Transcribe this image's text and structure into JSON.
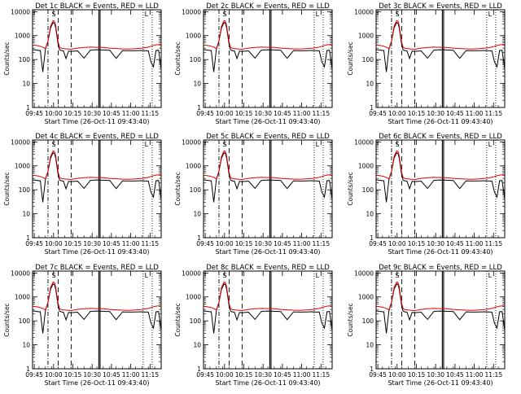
{
  "figure": {
    "layout": "3x3 grid of time-series panels",
    "line_colors": {
      "events": "#000000",
      "lld": "#e00000",
      "markers": "#000000"
    },
    "common": {
      "type": "line",
      "ylabel": "Counts/sec",
      "xlabel": "Start Time (26-Oct-11 09:43:40)",
      "yscale": "log",
      "ylim": [
        1,
        12000
      ],
      "yticks": [
        1,
        10,
        100,
        1000,
        10000
      ],
      "ytick_labels": [
        "1",
        "10",
        "100",
        "1000",
        "10000"
      ],
      "xlim_min": [
        0,
        100
      ],
      "flag_label_s": "S",
      "flag_label_l": "L",
      "marker_times_min": {
        "dashdot": 12,
        "dashed": [
          20,
          30
        ],
        "solid_double": [
          51.5,
          52.5
        ],
        "dotted": [
          86,
          93
        ]
      },
      "x": [
        0,
        2,
        4,
        5,
        6,
        8,
        10,
        12,
        14,
        16,
        17,
        18,
        19,
        20,
        21,
        22,
        24,
        26,
        28,
        30,
        35,
        40,
        45,
        50,
        55,
        60,
        65,
        70,
        75,
        80,
        85,
        90,
        92,
        94,
        96,
        98,
        100
      ],
      "series_lld": [
        410,
        395,
        380,
        370,
        360,
        330,
        290,
        600,
        2500,
        4200,
        4000,
        2600,
        1100,
        500,
        330,
        300,
        290,
        280,
        275,
        270,
        300,
        320,
        330,
        325,
        320,
        300,
        290,
        280,
        275,
        285,
        300,
        330,
        360,
        390,
        410,
        420,
        425
      ],
      "series_events": [
        260,
        255,
        245,
        240,
        240,
        30,
        270,
        600,
        2100,
        3500,
        3300,
        2100,
        900,
        380,
        255,
        240,
        230,
        110,
        225,
        220,
        230,
        115,
        250,
        258,
        252,
        245,
        112,
        238,
        232,
        236,
        240,
        230,
        80,
        50,
        240,
        245,
        40
      ]
    }
  },
  "chart_data": [
    {
      "title": "Det 1c BLACK = Events, RED = LLD",
      "type": "line",
      "xtick_labels": [
        "09:45",
        "10:00",
        "10:15",
        "10:30",
        "10:45",
        "11:00",
        "11:15"
      ],
      "xtick_min": [
        1.33,
        16.33,
        31.33,
        46.33,
        61.33,
        76.33,
        91.33
      ],
      "xlabel": "Start Time (26-Oct-11 09:43:40)",
      "ylabel": "Counts/sec"
    },
    {
      "title": "Det 2c BLACK = Events, RED = LLD",
      "type": "line",
      "xtick_labels": [
        "09:45",
        "10:00",
        "10:15",
        "10:30",
        "10:45",
        "11:00",
        "11:15"
      ],
      "xtick_min": [
        1.33,
        16.33,
        31.33,
        46.33,
        61.33,
        76.33,
        91.33
      ],
      "xlabel": "Start Time (26-Oct-11 09:43:40)",
      "ylabel": "Counts/sec"
    },
    {
      "title": "Det 3c BLACK = Events, RED = LLD",
      "type": "line",
      "xtick_labels": [
        "09:45",
        "10:00",
        "10:15",
        "10:30",
        "10:45",
        "11:00",
        "11:15"
      ],
      "xtick_min": [
        1.33,
        16.33,
        31.33,
        46.33,
        61.33,
        76.33,
        91.33
      ],
      "xlabel": "Start Time (26-Oct-11 09:43:40)",
      "ylabel": "Counts/sec"
    },
    {
      "title": "Det 4c BLACK = Events, RED = LLD",
      "type": "line",
      "xtick_labels": [
        "09:45",
        "10:00",
        "10:15",
        "10:30",
        "10:45",
        "11:00",
        "11:15"
      ],
      "xtick_min": [
        1.33,
        16.33,
        31.33,
        46.33,
        61.33,
        76.33,
        91.33
      ],
      "xlabel": "Start Time (26-Oct-11 09:43:40)",
      "ylabel": "Counts/sec"
    },
    {
      "title": "Det 5c BLACK = Events, RED = LLD",
      "type": "line",
      "xtick_labels": [
        "09:45",
        "10:00",
        "10:15",
        "10:30",
        "10:45",
        "11:00",
        "11:15"
      ],
      "xtick_min": [
        1.33,
        16.33,
        31.33,
        46.33,
        61.33,
        76.33,
        91.33
      ],
      "xlabel": "Start Time (26-Oct-11 09:43:40)",
      "ylabel": "Counts/sec"
    },
    {
      "title": "Det 6c BLACK = Events, RED = LLD",
      "type": "line",
      "xtick_labels": [
        "09:45",
        "10:00",
        "10:15",
        "10:30",
        "10:45",
        "11:00",
        "11:15"
      ],
      "xtick_min": [
        1.33,
        16.33,
        31.33,
        46.33,
        61.33,
        76.33,
        91.33
      ],
      "xlabel": "Start Time (26-Oct-11 09:43:40)",
      "ylabel": "Counts/sec"
    },
    {
      "title": "Det 7c BLACK = Events, RED = LLD",
      "type": "line",
      "xtick_labels": [
        "09:45",
        "10:00",
        "10:15",
        "10:30",
        "10:45",
        "11:00",
        "11:15"
      ],
      "xtick_min": [
        1.33,
        16.33,
        31.33,
        46.33,
        61.33,
        76.33,
        91.33
      ],
      "xlabel": "Start Time (26-Oct-11 09:43:40)",
      "ylabel": "Counts/sec"
    },
    {
      "title": "Det 8c BLACK = Events, RED = LLD",
      "type": "line",
      "xtick_labels": [
        "09:45",
        "10:00",
        "10:15",
        "10:30",
        "10:45",
        "11:00",
        "11:15"
      ],
      "xtick_min": [
        1.33,
        16.33,
        31.33,
        46.33,
        61.33,
        76.33,
        91.33
      ],
      "xlabel": "Start Time (26-Oct-11 09:43:40)",
      "ylabel": "Counts/sec"
    },
    {
      "title": "Det 9c BLACK = Events, RED = LLD",
      "type": "line",
      "xtick_labels": [
        "09:45",
        "10:00",
        "10:15",
        "10:30",
        "10:45",
        "11:00",
        "11:15"
      ],
      "xtick_min": [
        1.33,
        16.33,
        31.33,
        46.33,
        61.33,
        76.33,
        91.33
      ],
      "xlabel": "Start Time (26-Oct-11 09:43:40)",
      "ylabel": "Counts/sec"
    }
  ]
}
